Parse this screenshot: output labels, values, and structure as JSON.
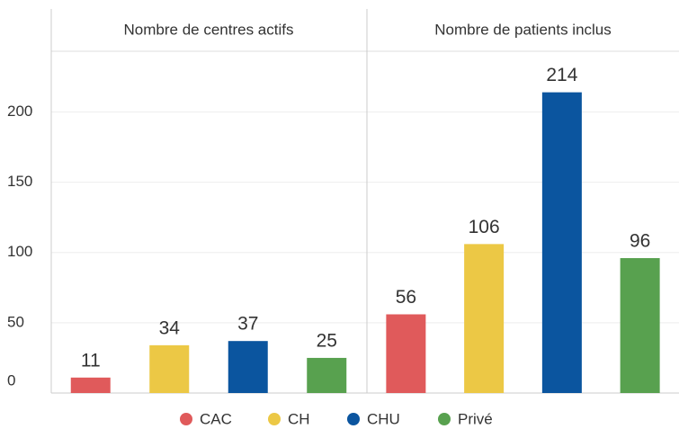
{
  "chart_data": {
    "type": "bar",
    "categories": [
      "CAC",
      "CH",
      "CHU",
      "Privé"
    ],
    "colors": [
      "#e05a5b",
      "#ecc845",
      "#0b559f",
      "#58a14f"
    ],
    "facets": [
      {
        "title": "Nombre de centres actifs",
        "values": [
          11,
          34,
          37,
          25
        ]
      },
      {
        "title": "Nombre de patients inclus",
        "values": [
          56,
          106,
          214,
          96
        ]
      }
    ],
    "ylim": [
      0,
      240
    ],
    "yticks": [
      0,
      50,
      100,
      150,
      200
    ],
    "grid": true,
    "legend": "bottom"
  }
}
